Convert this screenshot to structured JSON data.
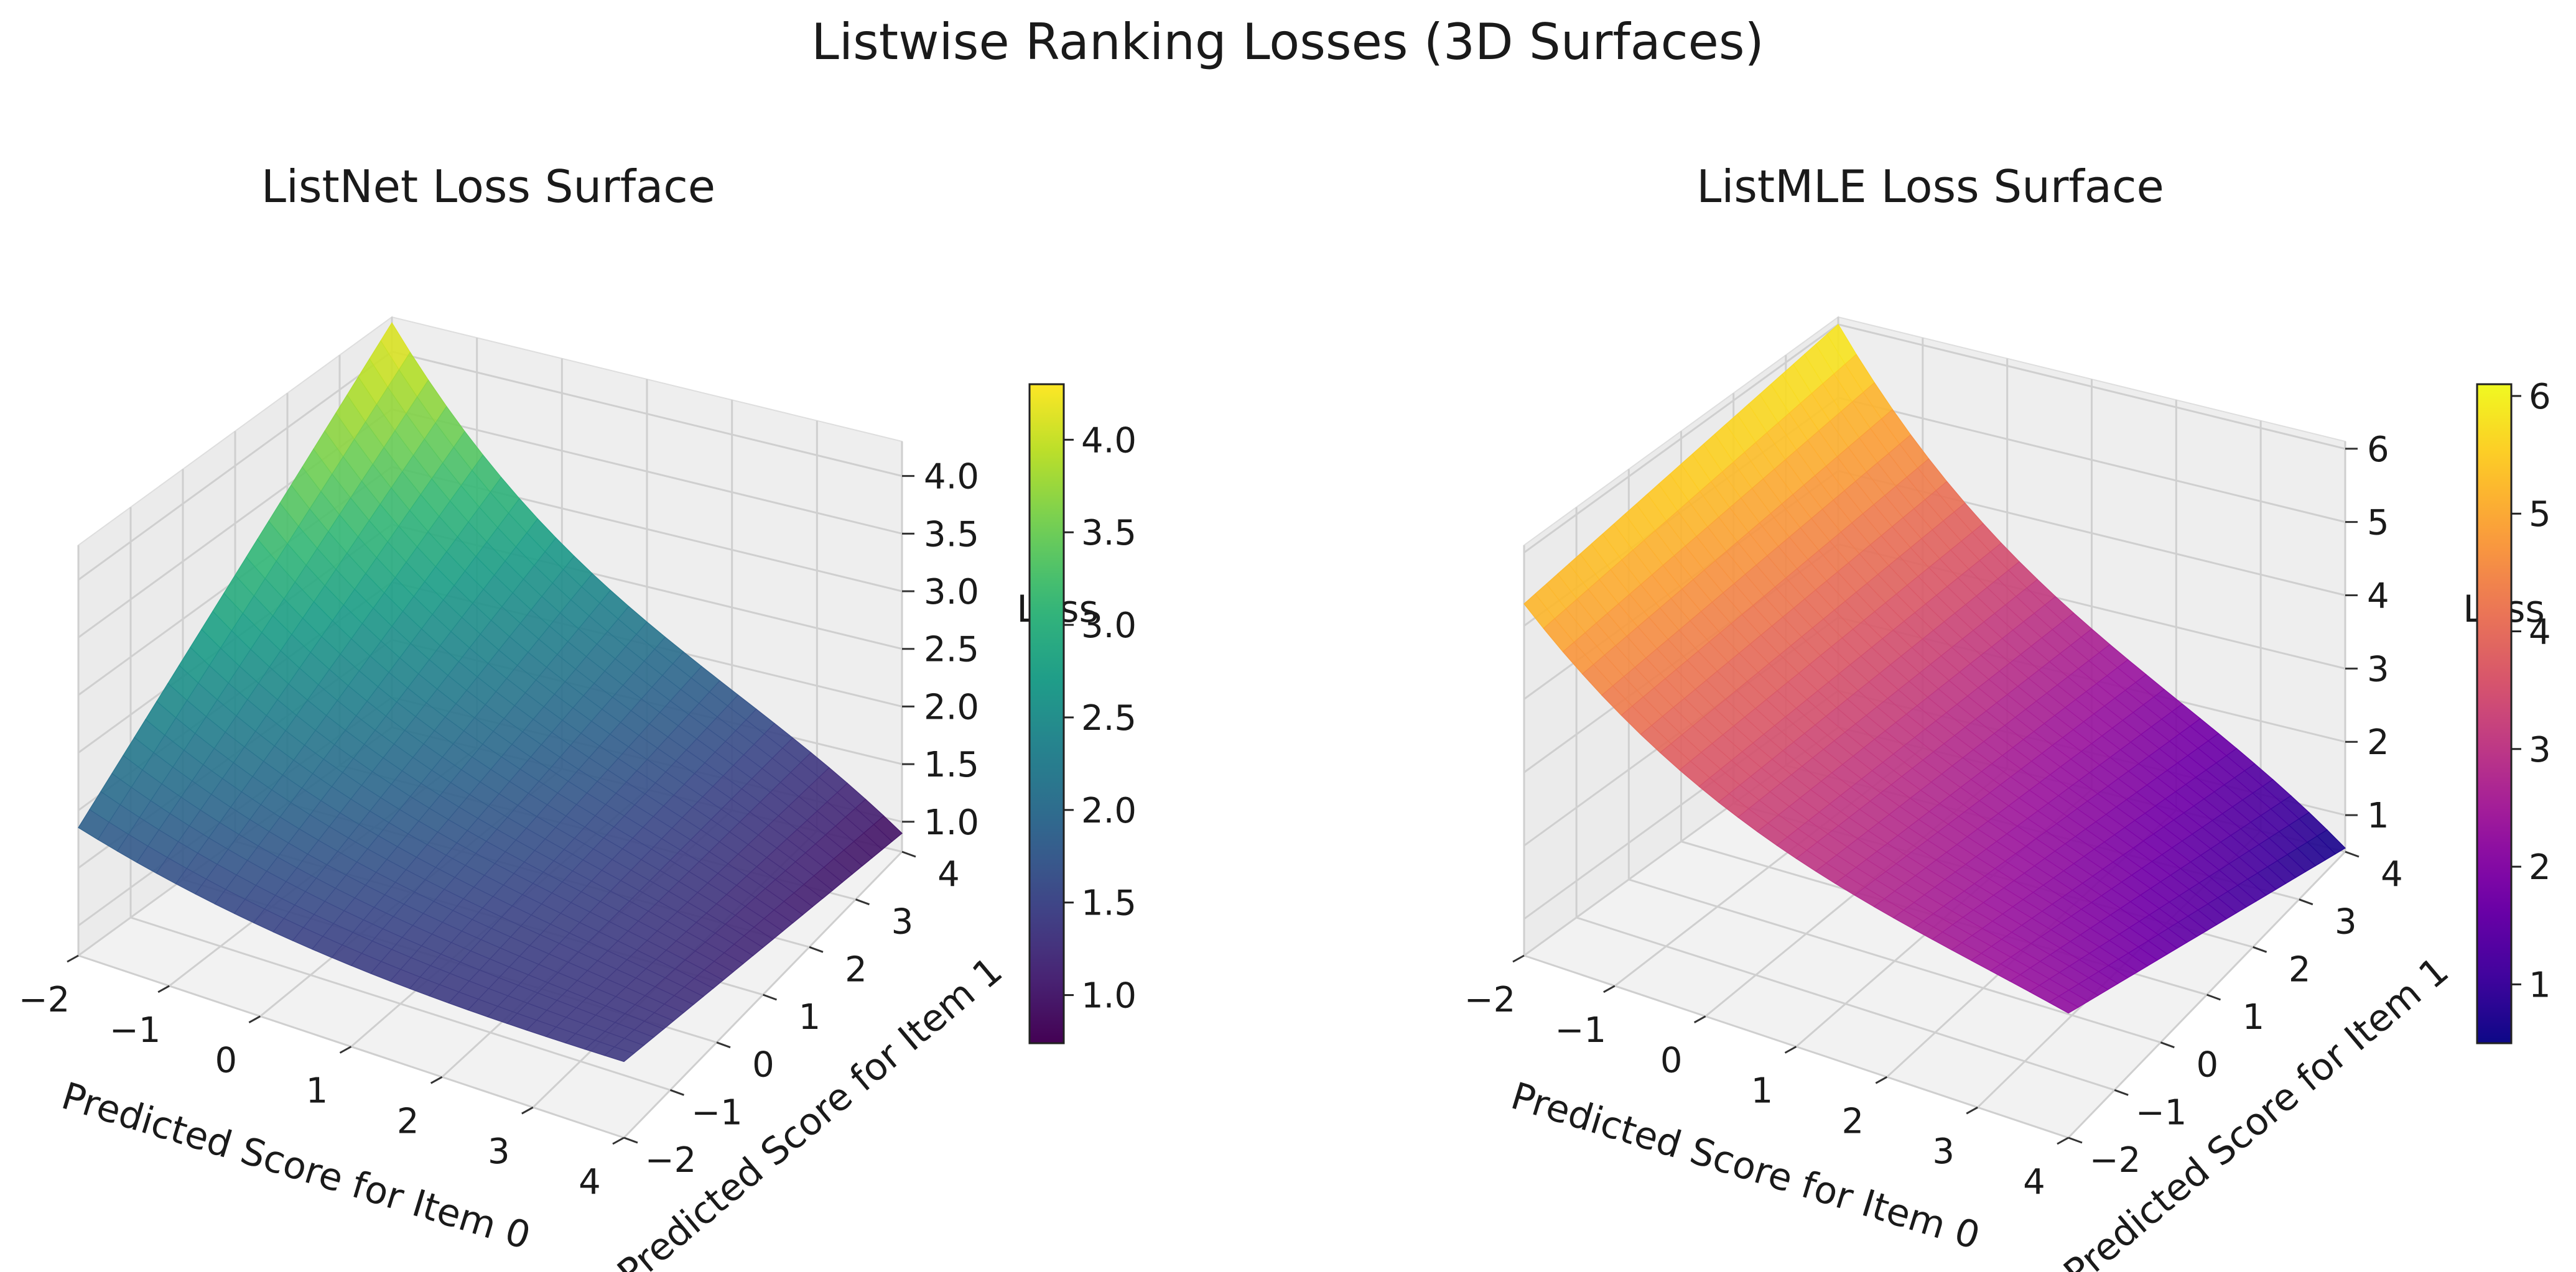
{
  "suptitle": "Listwise Ranking Losses (3D Surfaces)",
  "chart_data": [
    {
      "type": "surface3d",
      "title": "ListNet Loss Surface",
      "xlabel": "Predicted Score for Item 0",
      "ylabel": "Predicted Score for Item 1",
      "zlabel": "Loss",
      "colormap": "viridis",
      "xlim": [
        -2,
        4
      ],
      "ylim": [
        -2,
        4
      ],
      "zlim": [
        0.74,
        4.3
      ],
      "xticks": [
        "−2",
        "−1",
        "0",
        "1",
        "2",
        "3",
        "4"
      ],
      "yticks": [
        "−2",
        "−1",
        "0",
        "1",
        "2",
        "3",
        "4"
      ],
      "zticks": [
        "1.0",
        "1.5",
        "2.0",
        "2.5",
        "3.0",
        "3.5",
        "4.0"
      ],
      "corner_values": {
        "x-2_y-2": 1.85,
        "x-2_y4": 4.25,
        "x4_y-2": 1.4,
        "x4_y4": 0.9
      },
      "min_value": 0.76,
      "colorbar": {
        "ticks": [
          "1.0",
          "1.5",
          "2.0",
          "2.5",
          "3.0",
          "3.5",
          "4.0"
        ],
        "min": 0.74,
        "max": 4.3
      }
    },
    {
      "type": "surface3d",
      "title": "ListMLE Loss Surface",
      "xlabel": "Predicted Score for Item 0",
      "ylabel": "Predicted Score for Item 1",
      "zlabel": "Loss",
      "colormap": "plasma",
      "xlim": [
        -2,
        4
      ],
      "ylim": [
        -2,
        4
      ],
      "zlim": [
        0.5,
        6.1
      ],
      "xticks": [
        "−2",
        "−1",
        "0",
        "1",
        "2",
        "3",
        "4"
      ],
      "yticks": [
        "−2",
        "−1",
        "0",
        "1",
        "2",
        "3",
        "4"
      ],
      "zticks": [
        "1",
        "2",
        "3",
        "4",
        "5",
        "6"
      ],
      "corner_values": {
        "x-2_y-2": 5.3,
        "x-2_y4": 6.0,
        "x4_y-2": 2.2,
        "x4_y4": 0.55
      },
      "min_value": 0.5,
      "colorbar": {
        "ticks": [
          "1",
          "2",
          "3",
          "4",
          "5",
          "6"
        ],
        "min": 0.5,
        "max": 6.1
      }
    }
  ]
}
